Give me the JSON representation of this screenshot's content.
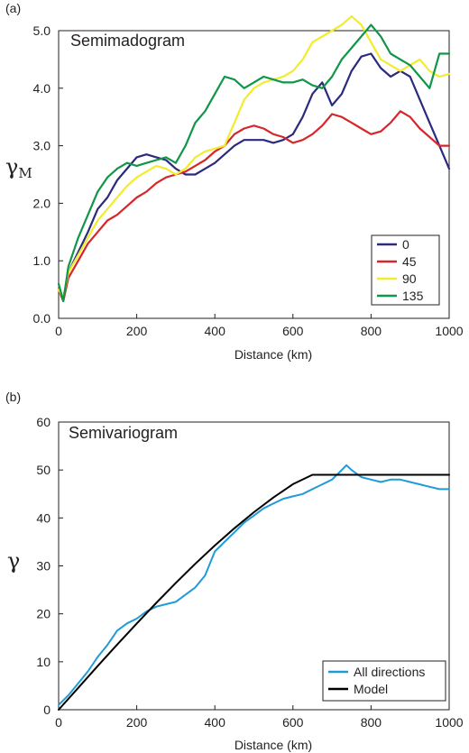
{
  "chart_data": [
    {
      "panel_label": "(a)",
      "type": "line",
      "title": "Semimadogram",
      "xlabel": "Distance (km)",
      "ylabel_main": "γ",
      "ylabel_sub": "M",
      "xlim": [
        0,
        1000
      ],
      "ylim": [
        0,
        5
      ],
      "xticks": [
        "0",
        "200",
        "400",
        "600",
        "800",
        "1000"
      ],
      "yticks": [
        "0.0",
        "1.0",
        "2.0",
        "3.0",
        "4.0",
        "5.0"
      ],
      "legend_position": "bottom-right",
      "grid": false,
      "series": [
        {
          "name": "0",
          "color": "#2b2a7e",
          "x": [
            0,
            12,
            25,
            50,
            75,
            100,
            125,
            150,
            175,
            200,
            225,
            250,
            275,
            300,
            325,
            350,
            375,
            400,
            425,
            450,
            475,
            500,
            525,
            550,
            575,
            600,
            625,
            650,
            675,
            700,
            725,
            750,
            775,
            800,
            825,
            850,
            875,
            900,
            925,
            950,
            975,
            1000
          ],
          "y": [
            0.5,
            0.35,
            0.8,
            1.15,
            1.5,
            1.9,
            2.1,
            2.4,
            2.6,
            2.8,
            2.85,
            2.8,
            2.75,
            2.6,
            2.5,
            2.5,
            2.6,
            2.7,
            2.85,
            3.0,
            3.1,
            3.1,
            3.1,
            3.05,
            3.1,
            3.2,
            3.5,
            3.9,
            4.1,
            3.7,
            3.9,
            4.3,
            4.55,
            4.6,
            4.35,
            4.2,
            4.3,
            4.2,
            3.8,
            3.4,
            3.0,
            2.6
          ]
        },
        {
          "name": "45",
          "color": "#d7262b",
          "x": [
            0,
            12,
            25,
            50,
            75,
            100,
            125,
            150,
            175,
            200,
            225,
            250,
            275,
            300,
            325,
            350,
            375,
            400,
            425,
            450,
            475,
            500,
            525,
            550,
            575,
            600,
            625,
            650,
            675,
            700,
            725,
            750,
            775,
            800,
            825,
            850,
            875,
            900,
            925,
            950,
            975,
            1000
          ],
          "y": [
            0.5,
            0.3,
            0.7,
            1.0,
            1.3,
            1.5,
            1.7,
            1.8,
            1.95,
            2.1,
            2.2,
            2.35,
            2.45,
            2.5,
            2.55,
            2.65,
            2.75,
            2.9,
            3.0,
            3.2,
            3.3,
            3.35,
            3.3,
            3.2,
            3.15,
            3.05,
            3.1,
            3.2,
            3.35,
            3.55,
            3.5,
            3.4,
            3.3,
            3.2,
            3.25,
            3.4,
            3.6,
            3.5,
            3.3,
            3.15,
            3.0,
            3.0
          ]
        },
        {
          "name": "90",
          "color": "#f2ec2c",
          "x": [
            0,
            12,
            25,
            50,
            75,
            100,
            125,
            150,
            175,
            200,
            225,
            250,
            275,
            300,
            325,
            350,
            375,
            400,
            425,
            450,
            475,
            500,
            525,
            550,
            575,
            600,
            625,
            650,
            675,
            700,
            725,
            750,
            775,
            800,
            825,
            850,
            875,
            900,
            925,
            950,
            975,
            1000
          ],
          "y": [
            0.5,
            0.35,
            0.8,
            1.1,
            1.4,
            1.7,
            1.9,
            2.1,
            2.3,
            2.45,
            2.55,
            2.65,
            2.6,
            2.5,
            2.6,
            2.8,
            2.9,
            2.95,
            3.0,
            3.4,
            3.8,
            4.0,
            4.1,
            4.15,
            4.2,
            4.3,
            4.5,
            4.8,
            4.9,
            5.0,
            5.1,
            5.25,
            5.1,
            4.8,
            4.5,
            4.4,
            4.3,
            4.4,
            4.5,
            4.3,
            4.2,
            4.25
          ]
        },
        {
          "name": "135",
          "color": "#0f9648",
          "x": [
            0,
            12,
            25,
            50,
            75,
            100,
            125,
            150,
            175,
            200,
            225,
            250,
            275,
            300,
            325,
            350,
            375,
            400,
            425,
            450,
            475,
            500,
            525,
            550,
            575,
            600,
            625,
            650,
            675,
            700,
            725,
            750,
            775,
            800,
            825,
            850,
            875,
            900,
            925,
            950,
            975,
            1000
          ],
          "y": [
            0.6,
            0.3,
            0.9,
            1.4,
            1.8,
            2.2,
            2.45,
            2.6,
            2.7,
            2.65,
            2.7,
            2.75,
            2.8,
            2.7,
            3.0,
            3.4,
            3.6,
            3.9,
            4.2,
            4.15,
            4.0,
            4.1,
            4.2,
            4.15,
            4.1,
            4.1,
            4.15,
            4.05,
            4.0,
            4.2,
            4.5,
            4.7,
            4.9,
            5.1,
            4.9,
            4.6,
            4.5,
            4.4,
            4.2,
            4.0,
            4.6,
            4.6
          ]
        }
      ]
    },
    {
      "panel_label": "(b)",
      "type": "line",
      "title": "Semivariogram",
      "xlabel": "Distance (km)",
      "ylabel_main": "γ",
      "xlim": [
        0,
        1000
      ],
      "ylim": [
        0,
        60
      ],
      "xticks": [
        "0",
        "200",
        "400",
        "600",
        "800",
        "1000"
      ],
      "yticks": [
        "0",
        "10",
        "20",
        "30",
        "40",
        "50",
        "60"
      ],
      "legend_position": "bottom-right",
      "grid": false,
      "series": [
        {
          "name": "All directions",
          "color": "#1f9bd7",
          "x": [
            0,
            25,
            50,
            75,
            100,
            125,
            150,
            175,
            200,
            225,
            250,
            275,
            300,
            325,
            350,
            375,
            400,
            425,
            450,
            475,
            500,
            525,
            550,
            575,
            600,
            625,
            650,
            675,
            700,
            725,
            737,
            750,
            775,
            800,
            825,
            850,
            875,
            900,
            925,
            950,
            975,
            1000
          ],
          "y": [
            1,
            3,
            5.5,
            8,
            11,
            13.5,
            16.5,
            18,
            19,
            20.5,
            21.5,
            22,
            22.5,
            24,
            25.5,
            28,
            33,
            35,
            37,
            39,
            40.5,
            42,
            43,
            44,
            44.5,
            45,
            46,
            47,
            48,
            50,
            51,
            50,
            48.5,
            48,
            47.5,
            48,
            48,
            47.5,
            47,
            46.5,
            46,
            46
          ]
        },
        {
          "name": "Model",
          "color": "#000000",
          "x": [
            0,
            50,
            100,
            150,
            200,
            250,
            300,
            350,
            400,
            450,
            500,
            550,
            600,
            650,
            700,
            750,
            780,
            800,
            850,
            900,
            950,
            1000
          ],
          "y": [
            0,
            4.56,
            9.1,
            13.58,
            17.99,
            22.28,
            26.44,
            30.44,
            34.25,
            37.84,
            41.19,
            44.26,
            47.05,
            49.0,
            49.0,
            49.0,
            49.0,
            49.0,
            49.0,
            49.0,
            49.0,
            49.0
          ]
        }
      ]
    }
  ]
}
